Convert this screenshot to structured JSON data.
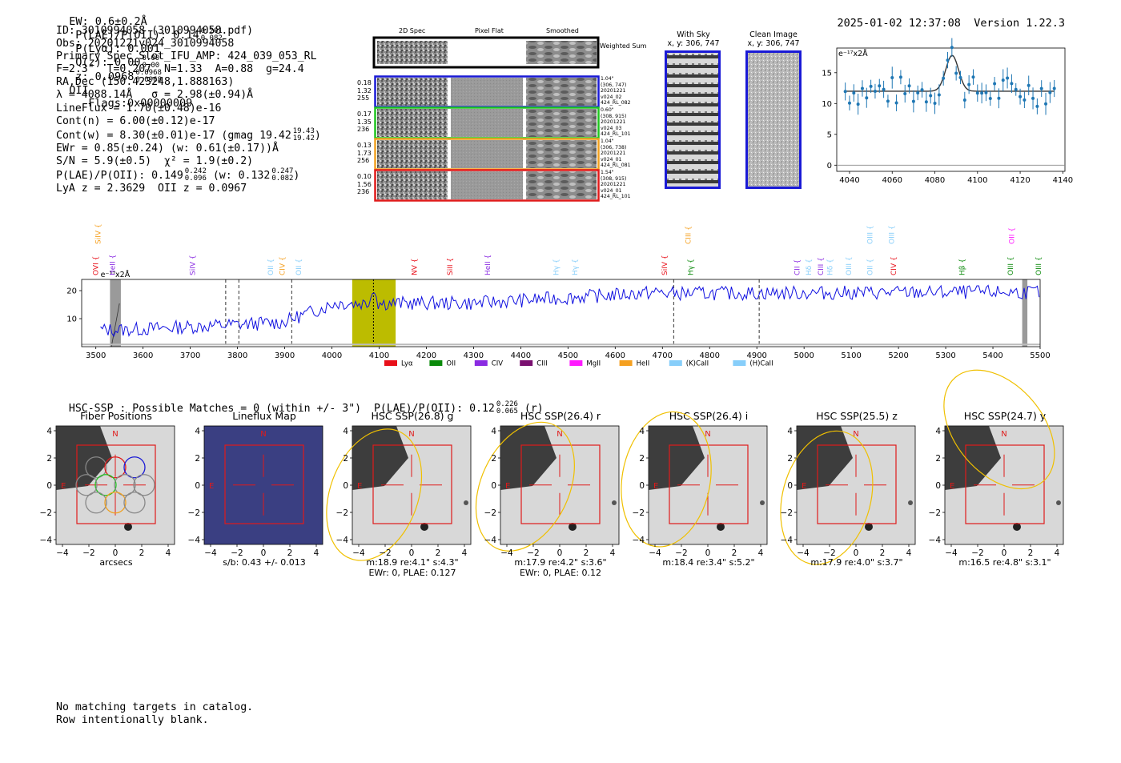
{
  "header": {
    "ew": "EW: 0.6±0.2Å",
    "plae_label": "P(LAE)/P(OII): 0.14",
    "plae_hi": "0.201",
    "plae_lo": "0.082",
    "plya": "P(Lyα): 0.001",
    "qz_label": "Q(z): 0.00",
    "qz_hi": "0.00",
    "qz_lo": "0.00",
    "z_label": "z: 0.0968",
    "z_hi": "0.0968",
    "z_lo": "0.0968",
    "z_line": "OII",
    "flags": "Flags:0x00000009",
    "datetime": "2025-01-02 12:37:08",
    "version": "Version 1.22.3"
  },
  "info": {
    "id": "ID: 3010994058 (3010994058.pdf)",
    "obs": "Obs: 20201221v024_3010994058",
    "primary": "Primary Spec_Slot_IFU_AMP: 424_039_053_RL",
    "fit": "F=2.3\"  T=0.207  N=1.33  A=0.88  g=24.4",
    "radec": "RA,Dec (150.423248,1.888163)",
    "lambda": "λ = 4088.14Å   σ = 2.98(±0.94)Å",
    "lineflux": "LineFlux = 1.70(±0.48)e-16",
    "contn": "Cont(n) = 6.00(±0.12)e-17",
    "contw": "Cont(w) = 8.30(±0.01)e-17 (gmag 19.42",
    "contw_hi": "19.43",
    "contw_lo": "19.42",
    "contw_end": ")",
    "ewr": "EWr = 0.85(±0.24) (w: 0.61(±0.17))Å",
    "sn": "S/N = 5.9(±0.5)  χ² = 1.9(±0.2)",
    "plae": "P(LAE)/P(OII): 0.149",
    "plae_hi": "0.242",
    "plae_lo": "0.096",
    "plae_w": "(w: 0.132",
    "plae_w_hi": "0.247",
    "plae_w_lo": "0.082",
    "plae_w_end": ")",
    "lyaz": "LyA z = 2.3629  OII z = 0.0967"
  },
  "cutouts": {
    "col_2d": "2D Spec",
    "col_flat": "Pixel Flat",
    "col_smooth": "Smoothed",
    "weighted_sum": "Weighted Sum",
    "rows": [
      {
        "left": [
          "0.18",
          "1.32",
          "255"
        ],
        "right": [
          "1.04\"",
          "(306, 747)",
          "20201221",
          "v024_02",
          "424_RL_082"
        ],
        "color": "#1a1ad6"
      },
      {
        "left": [
          "0.17",
          "1.35",
          "236"
        ],
        "right": [
          "0.60\"",
          "(308, 915)",
          "20201221",
          "v024_03",
          "424_RL_101"
        ],
        "color": "#1fc41f"
      },
      {
        "left": [
          "0.13",
          "1.73",
          "256"
        ],
        "right": [
          "1.04\"",
          "(306, 738)",
          "20201221",
          "v024_01",
          "424_RL_081"
        ],
        "color": "#f0a020"
      },
      {
        "left": [
          "0.10",
          "1.56",
          "236"
        ],
        "right": [
          "1.54\"",
          "(308, 915)",
          "20201221",
          "v024_01",
          "424_RL_101"
        ],
        "color": "#e01a1a"
      }
    ],
    "with_sky": "With Sky",
    "with_sky_xy": "x, y: 306, 747",
    "clean": "Clean Image",
    "clean_xy": "x, y: 306, 747"
  },
  "zoom_chart": {
    "unit": "e⁻¹⁷x2Å",
    "x_ticks": [
      "4040",
      "4060",
      "4080",
      "4100",
      "4120",
      "4140"
    ],
    "y_ticks": [
      "0",
      "5",
      "10",
      "15"
    ]
  },
  "main_spectrum": {
    "unit": "e⁻¹⁷x2Å",
    "x_ticks": [
      "3500",
      "3600",
      "3700",
      "3800",
      "3900",
      "4000",
      "4100",
      "4200",
      "4300",
      "4400",
      "4500",
      "4600",
      "4700",
      "4800",
      "4900",
      "5000",
      "5100",
      "5200",
      "5300",
      "5400",
      "5500"
    ],
    "y_ticks": [
      "10",
      "20"
    ],
    "legend": [
      {
        "label": "Lyα",
        "color": "#e8101a"
      },
      {
        "label": "OII",
        "color": "#0a8a0a"
      },
      {
        "label": "CIV",
        "color": "#8a2be2"
      },
      {
        "label": "CIII",
        "color": "#7a1070"
      },
      {
        "label": "MgII",
        "color": "#ff1aff"
      },
      {
        "label": "HeII",
        "color": "#f5a020"
      },
      {
        "label": "(K)CaII",
        "color": "#87cefa"
      },
      {
        "label": "(H)CaII",
        "color": "#87cefa"
      }
    ],
    "line_labels": [
      {
        "t": "OVI",
        "x": 3500,
        "row": 2,
        "c": "#e8101a"
      },
      {
        "t": "SiIV",
        "x": 3505,
        "row": 1,
        "c": "#f5a020"
      },
      {
        "t": "HeII",
        "x": 3535,
        "row": 2,
        "c": "#8a2be2"
      },
      {
        "t": "SiIV",
        "x": 3705,
        "row": 2,
        "c": "#8a2be2"
      },
      {
        "t": "OII",
        "x": 3870,
        "row": 2,
        "c": "#87cefa"
      },
      {
        "t": "CIV",
        "x": 3895,
        "row": 2,
        "c": "#f5a020"
      },
      {
        "t": "OII",
        "x": 3930,
        "row": 2,
        "c": "#87cefa"
      },
      {
        "t": "NV",
        "x": 4175,
        "row": 2,
        "c": "#e8101a"
      },
      {
        "t": "SiII",
        "x": 4250,
        "row": 2,
        "c": "#e8101a"
      },
      {
        "t": "HeII",
        "x": 4330,
        "row": 2,
        "c": "#8a2be2"
      },
      {
        "t": "Hγ",
        "x": 4475,
        "row": 2,
        "c": "#87cefa"
      },
      {
        "t": "Hγ",
        "x": 4515,
        "row": 2,
        "c": "#87cefa"
      },
      {
        "t": "SiIV",
        "x": 4705,
        "row": 2,
        "c": "#e8101a"
      },
      {
        "t": "CIII",
        "x": 4755,
        "row": 1,
        "c": "#f5a020"
      },
      {
        "t": "Hγ",
        "x": 4760,
        "row": 2,
        "c": "#0a8a0a"
      },
      {
        "t": "CII",
        "x": 4985,
        "row": 2,
        "c": "#8a2be2"
      },
      {
        "t": "Hδ",
        "x": 5010,
        "row": 2,
        "c": "#87cefa"
      },
      {
        "t": "CIII",
        "x": 5035,
        "row": 2,
        "c": "#8a2be2"
      },
      {
        "t": "Hδ",
        "x": 5055,
        "row": 2,
        "c": "#87cefa"
      },
      {
        "t": "OIII",
        "x": 5095,
        "row": 2,
        "c": "#87cefa"
      },
      {
        "t": "OII",
        "x": 5140,
        "row": 2,
        "c": "#87cefa"
      },
      {
        "t": "OIII",
        "x": 5140,
        "row": 1,
        "c": "#87cefa"
      },
      {
        "t": "OIII",
        "x": 5185,
        "row": 1,
        "c": "#87cefa"
      },
      {
        "t": "CIV",
        "x": 5190,
        "row": 2,
        "c": "#e8101a"
      },
      {
        "t": "Hβ",
        "x": 5335,
        "row": 2,
        "c": "#0a8a0a"
      },
      {
        "t": "OII",
        "x": 5440,
        "row": 1,
        "c": "#ff1aff"
      },
      {
        "t": "OIII",
        "x": 5437,
        "row": 2,
        "c": "#0a8a0a"
      },
      {
        "t": "OIII",
        "x": 5497,
        "row": 2,
        "c": "#0a8a0a"
      }
    ]
  },
  "hsc": {
    "title": "HSC-SSP : Possible Matches = 0 (within +/- 3\")  P(LAE)/P(OII): 0.12",
    "hi": "0.226",
    "lo": "0.065",
    "suffix": "(r)",
    "panels": [
      {
        "title": "Fiber Positions",
        "cap1": "arcsecs",
        "cap2": ""
      },
      {
        "title": "Lineflux Map",
        "cap1": "s/b: 0.43 +/- 0.013",
        "cap2": ""
      },
      {
        "title": "HSC SSP(26.8) g",
        "cap1": "m:18.9  re:4.1\"  s:4.3\"",
        "cap2": "EWr: 0, PLAE: 0.127"
      },
      {
        "title": "HSC SSP(26.4) r",
        "cap1": "m:17.9  re:4.2\"  s:3.6\"",
        "cap2": "EWr: 0, PLAE: 0.12"
      },
      {
        "title": "HSC SSP(26.4) i",
        "cap1": "m:18.4  re:3.4\"  s:5.2\"",
        "cap2": ""
      },
      {
        "title": "HSC SSP(25.5) z",
        "cap1": "m:17.9  re:4.0\"  s:3.7\"",
        "cap2": ""
      },
      {
        "title": "HSC SSP(24.7) y",
        "cap1": "m:16.5  re:4.8\"  s:3.1\"",
        "cap2": ""
      }
    ],
    "y_ticks": [
      "4",
      "2",
      "0",
      "−2",
      "−4"
    ],
    "x_ticks": [
      "−4",
      "−2",
      "0",
      "2",
      "4"
    ],
    "north": "N",
    "east": "E"
  },
  "footer": {
    "line1": "No matching targets in catalog.",
    "line2": "Row intentionally blank."
  }
}
